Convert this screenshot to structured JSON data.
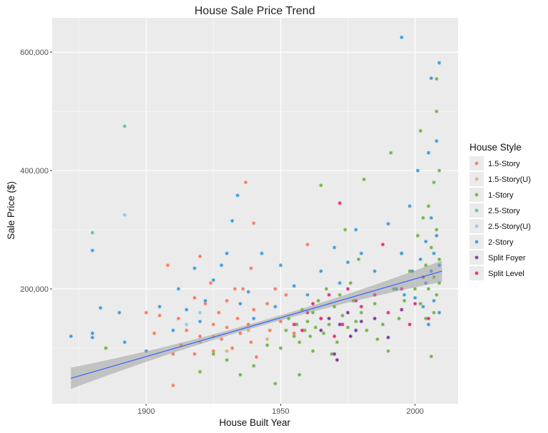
{
  "chart_data": {
    "type": "scatter",
    "title": "House Sale Price Trend",
    "xlabel": "House Built Year",
    "ylabel": "Sale Price ($)",
    "xlim": [
      1865,
      2016
    ],
    "ylim": [
      6000,
      658000
    ],
    "x_ticks": [
      1900,
      1950,
      2000
    ],
    "x_tick_labels": [
      "1900",
      "1950",
      "2000"
    ],
    "y_ticks": [
      200000,
      400000,
      600000
    ],
    "y_tick_labels": [
      "200,000",
      "400,000",
      "600,000"
    ],
    "grid": true,
    "legend": {
      "title": "House Style",
      "placement": "right"
    },
    "trend_line": {
      "method": "linear",
      "color": "#3366ff",
      "x": [
        1872,
        2010
      ],
      "y": [
        49000,
        230000
      ],
      "ribbon": true
    },
    "series": [
      {
        "name": "1.5-Story",
        "color": "#f8795a",
        "points": [
          [
            1908,
            240000
          ],
          [
            1910,
            37000
          ],
          [
            1910,
            90000
          ],
          [
            1912,
            150000
          ],
          [
            1915,
            130000
          ],
          [
            1918,
            185000
          ],
          [
            1920,
            255000
          ],
          [
            1920,
            120000
          ],
          [
            1922,
            175000
          ],
          [
            1924,
            210000
          ],
          [
            1925,
            95000
          ],
          [
            1925,
            140000
          ],
          [
            1927,
            160000
          ],
          [
            1928,
            115000
          ],
          [
            1930,
            180000
          ],
          [
            1930,
            135000
          ],
          [
            1932,
            100000
          ],
          [
            1934,
            150000
          ],
          [
            1935,
            125000
          ],
          [
            1936,
            200000
          ],
          [
            1937,
            380000
          ],
          [
            1938,
            140000
          ],
          [
            1939,
            110000
          ],
          [
            1940,
            311000
          ],
          [
            1940,
            165000
          ],
          [
            1941,
            85000
          ],
          [
            1945,
            175000
          ],
          [
            1946,
            130000
          ],
          [
            1948,
            200000
          ],
          [
            1950,
            145000
          ],
          [
            1952,
            190000
          ],
          [
            1955,
            125000
          ],
          [
            1900,
            160000
          ],
          [
            1903,
            125000
          ],
          [
            1905,
            155000
          ],
          [
            1913,
            105000
          ],
          [
            1918,
            90000
          ],
          [
            1933,
            200000
          ],
          [
            1939,
            235000
          ],
          [
            1960,
            275000
          ]
        ]
      },
      {
        "name": "1.5-Story(U)",
        "color": "#d4b46a",
        "points": [
          [
            1920,
            110000
          ],
          [
            1925,
            120000
          ],
          [
            1930,
            95000
          ],
          [
            1938,
            130000
          ],
          [
            1945,
            115000
          ]
        ]
      },
      {
        "name": "1-Story",
        "color": "#6fb43f",
        "points": [
          [
            1885,
            100000
          ],
          [
            1920,
            60000
          ],
          [
            1925,
            90000
          ],
          [
            1930,
            80000
          ],
          [
            1935,
            55000
          ],
          [
            1940,
            70000
          ],
          [
            1945,
            105000
          ],
          [
            1948,
            40000
          ],
          [
            1950,
            100000
          ],
          [
            1952,
            130000
          ],
          [
            1953,
            150000
          ],
          [
            1955,
            120000
          ],
          [
            1956,
            140000
          ],
          [
            1957,
            110000
          ],
          [
            1958,
            165000
          ],
          [
            1959,
            130000
          ],
          [
            1960,
            145000
          ],
          [
            1961,
            120000
          ],
          [
            1962,
            160000
          ],
          [
            1963,
            135000
          ],
          [
            1964,
            180000
          ],
          [
            1965,
            375000
          ],
          [
            1965,
            150000
          ],
          [
            1966,
            125000
          ],
          [
            1967,
            200000
          ],
          [
            1968,
            140000
          ],
          [
            1970,
            170000
          ],
          [
            1971,
            110000
          ],
          [
            1972,
            190000
          ],
          [
            1973,
            155000
          ],
          [
            1974,
            300000
          ],
          [
            1975,
            135000
          ],
          [
            1976,
            210000
          ],
          [
            1977,
            180000
          ],
          [
            1978,
            145000
          ],
          [
            1979,
            250000
          ],
          [
            1980,
            160000
          ],
          [
            1981,
            385000
          ],
          [
            1982,
            130000
          ],
          [
            1985,
            175000
          ],
          [
            1988,
            140000
          ],
          [
            1990,
            95000
          ],
          [
            1991,
            430000
          ],
          [
            1992,
            200000
          ],
          [
            1994,
            150000
          ],
          [
            1995,
            260000
          ],
          [
            1996,
            180000
          ],
          [
            1998,
            230000
          ],
          [
            2000,
            200000
          ],
          [
            2001,
            290000
          ],
          [
            2002,
            467000
          ],
          [
            2002,
            175000
          ],
          [
            2003,
            320000
          ],
          [
            2004,
            240000
          ],
          [
            2004,
            150000
          ],
          [
            2005,
            340000
          ],
          [
            2005,
            200000
          ],
          [
            2006,
            270000
          ],
          [
            2006,
            86000
          ],
          [
            2007,
            380000
          ],
          [
            2007,
            220000
          ],
          [
            2007,
            160000
          ],
          [
            2008,
            555000
          ],
          [
            2008,
            500000
          ],
          [
            2008,
            300000
          ],
          [
            2008,
            190000
          ],
          [
            2009,
            400000
          ],
          [
            2009,
            250000
          ],
          [
            2009,
            210000
          ],
          [
            1957,
            55000
          ],
          [
            1962,
            95000
          ],
          [
            1969,
            90000
          ],
          [
            1986,
            115000
          ]
        ]
      },
      {
        "name": "2.5-Story",
        "color": "#5cc2a0",
        "points": [
          [
            1880,
            295000
          ],
          [
            1892,
            475000
          ]
        ]
      },
      {
        "name": "2.5-Story(U)",
        "color": "#8ec8e8",
        "points": [
          [
            1892,
            325000
          ],
          [
            1915,
            140000
          ],
          [
            1920,
            160000
          ]
        ]
      },
      {
        "name": "2-Story",
        "color": "#3a9bd9",
        "points": [
          [
            1872,
            120000
          ],
          [
            1880,
            118000
          ],
          [
            1880,
            265000
          ],
          [
            1880,
            125000
          ],
          [
            1883,
            168000
          ],
          [
            1890,
            160000
          ],
          [
            1892,
            110000
          ],
          [
            1900,
            95000
          ],
          [
            1905,
            170000
          ],
          [
            1910,
            130000
          ],
          [
            1912,
            200000
          ],
          [
            1915,
            165000
          ],
          [
            1918,
            235000
          ],
          [
            1920,
            145000
          ],
          [
            1922,
            180000
          ],
          [
            1925,
            215000
          ],
          [
            1928,
            240000
          ],
          [
            1930,
            260000
          ],
          [
            1932,
            315000
          ],
          [
            1934,
            358000
          ],
          [
            1935,
            175000
          ],
          [
            1938,
            195000
          ],
          [
            1940,
            150000
          ],
          [
            1943,
            260000
          ],
          [
            1948,
            170000
          ],
          [
            1950,
            240000
          ],
          [
            1955,
            205000
          ],
          [
            1960,
            190000
          ],
          [
            1965,
            230000
          ],
          [
            1970,
            270000
          ],
          [
            1972,
            210000
          ],
          [
            1975,
            245000
          ],
          [
            1978,
            300000
          ],
          [
            1980,
            260000
          ],
          [
            1985,
            230000
          ],
          [
            1990,
            310000
          ],
          [
            1993,
            200000
          ],
          [
            1995,
            625000
          ],
          [
            1995,
            260000
          ],
          [
            1996,
            190000
          ],
          [
            1998,
            340000
          ],
          [
            1999,
            230000
          ],
          [
            2000,
            185000
          ],
          [
            2001,
            400000
          ],
          [
            2002,
            250000
          ],
          [
            2003,
            170000
          ],
          [
            2004,
            280000
          ],
          [
            2004,
            210000
          ],
          [
            2005,
            430000
          ],
          [
            2005,
            140000
          ],
          [
            2006,
            556000
          ],
          [
            2006,
            320000
          ],
          [
            2006,
            230000
          ],
          [
            2007,
            260000
          ],
          [
            2007,
            180000
          ],
          [
            2008,
            450000
          ],
          [
            2008,
            290000
          ],
          [
            2009,
            582000
          ],
          [
            2009,
            240000
          ],
          [
            2009,
            160000
          ]
        ]
      },
      {
        "name": "Split Foyer",
        "color": "#7b3294",
        "points": [
          [
            1965,
            130000
          ],
          [
            1968,
            150000
          ],
          [
            1970,
            90000
          ],
          [
            1971,
            80000
          ],
          [
            1972,
            140000
          ],
          [
            1975,
            160000
          ],
          [
            1976,
            120000
          ],
          [
            1978,
            130000
          ],
          [
            1980,
            145000
          ],
          [
            1985,
            150000
          ],
          [
            1990,
            118000
          ],
          [
            1995,
            165000
          ]
        ]
      },
      {
        "name": "Split Level",
        "color": "#e0287f",
        "points": [
          [
            1955,
            140000
          ],
          [
            1958,
            130000
          ],
          [
            1960,
            160000
          ],
          [
            1962,
            175000
          ],
          [
            1965,
            150000
          ],
          [
            1968,
            190000
          ],
          [
            1970,
            120000
          ],
          [
            1972,
            345000
          ],
          [
            1973,
            140000
          ],
          [
            1975,
            200000
          ],
          [
            1978,
            180000
          ],
          [
            1980,
            170000
          ],
          [
            1985,
            190000
          ],
          [
            1988,
            275000
          ],
          [
            1990,
            160000
          ],
          [
            1995,
            200000
          ],
          [
            1998,
            140000
          ],
          [
            2000,
            175000
          ],
          [
            2003,
            220000
          ],
          [
            2005,
            150000
          ]
        ]
      }
    ]
  }
}
